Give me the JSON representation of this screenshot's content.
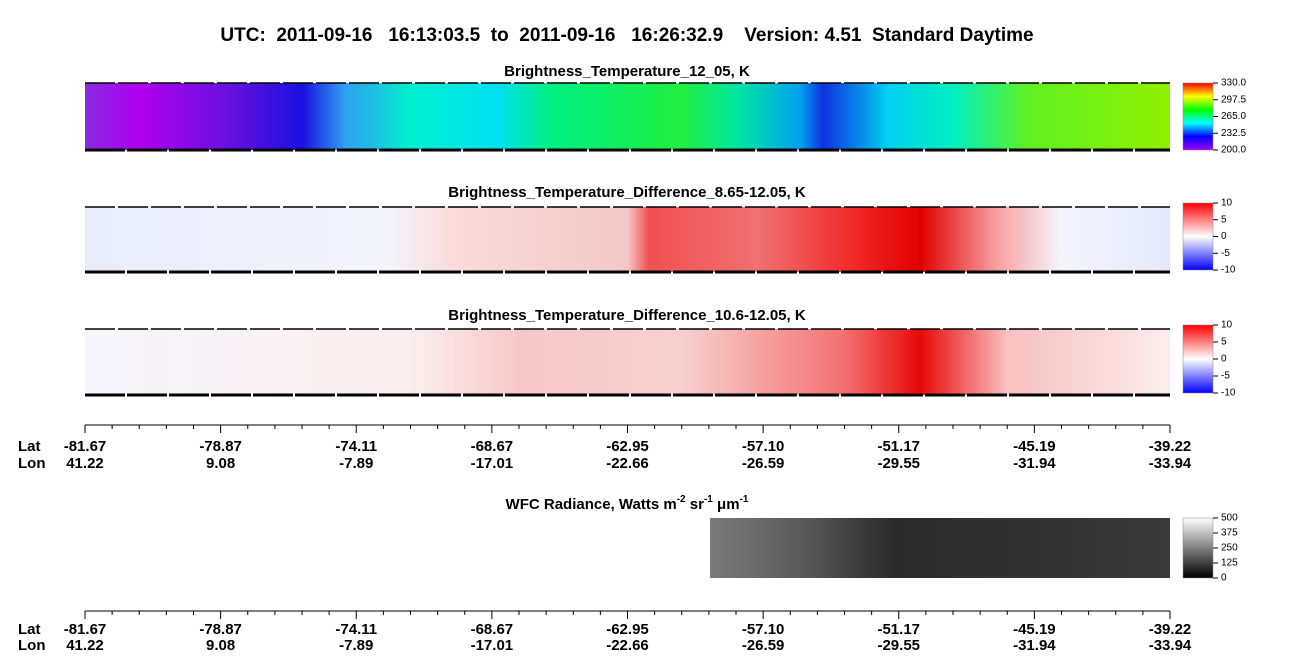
{
  "header": {
    "title": "UTC:  2011-09-16   16:13:03.5  to  2011-09-16   16:26:32.9    Version: 4.51  Standard Daytime"
  },
  "panels": [
    {
      "title": "Brightness_Temperature_12_05, K",
      "cbar_lim": [
        200,
        330
      ],
      "cbar_ticks": [
        {
          "value": 330,
          "label": "330.0"
        },
        {
          "value": 297.5,
          "label": "297.5"
        },
        {
          "value": 265,
          "label": "265.0"
        },
        {
          "value": 232.5,
          "label": "232.5"
        },
        {
          "value": 200,
          "label": "200.0"
        }
      ]
    },
    {
      "title": "Brightness_Temperature_Difference_8.65-12.05, K",
      "cbar_lim": [
        -10,
        10
      ],
      "cbar_ticks": [
        10,
        5,
        0,
        -5,
        -10
      ]
    },
    {
      "title": "Brightness_Temperature_Difference_10.6-12.05, K",
      "cbar_lim": [
        -10,
        10
      ],
      "cbar_ticks": [
        10,
        5,
        0,
        -5,
        -10
      ]
    },
    {
      "title_parts": [
        "WFC Radiance, Watts m",
        "-2",
        " sr",
        "-1",
        " μm",
        "-1"
      ],
      "cbar_lim": [
        0,
        500
      ],
      "cbar_ticks": [
        500,
        375,
        250,
        125,
        0
      ]
    }
  ],
  "axis": {
    "lat_label": "Lat",
    "lon_label": "Lon",
    "lat": [
      "-81.67",
      "-78.87",
      "-74.11",
      "-68.67",
      "-62.95",
      "-57.10",
      "-51.17",
      "-45.19",
      "-39.22"
    ],
    "lon": [
      "41.22",
      "9.08",
      "-7.89",
      "-17.01",
      "-22.66",
      "-26.59",
      "-29.55",
      "-31.94",
      "-33.94"
    ]
  }
}
